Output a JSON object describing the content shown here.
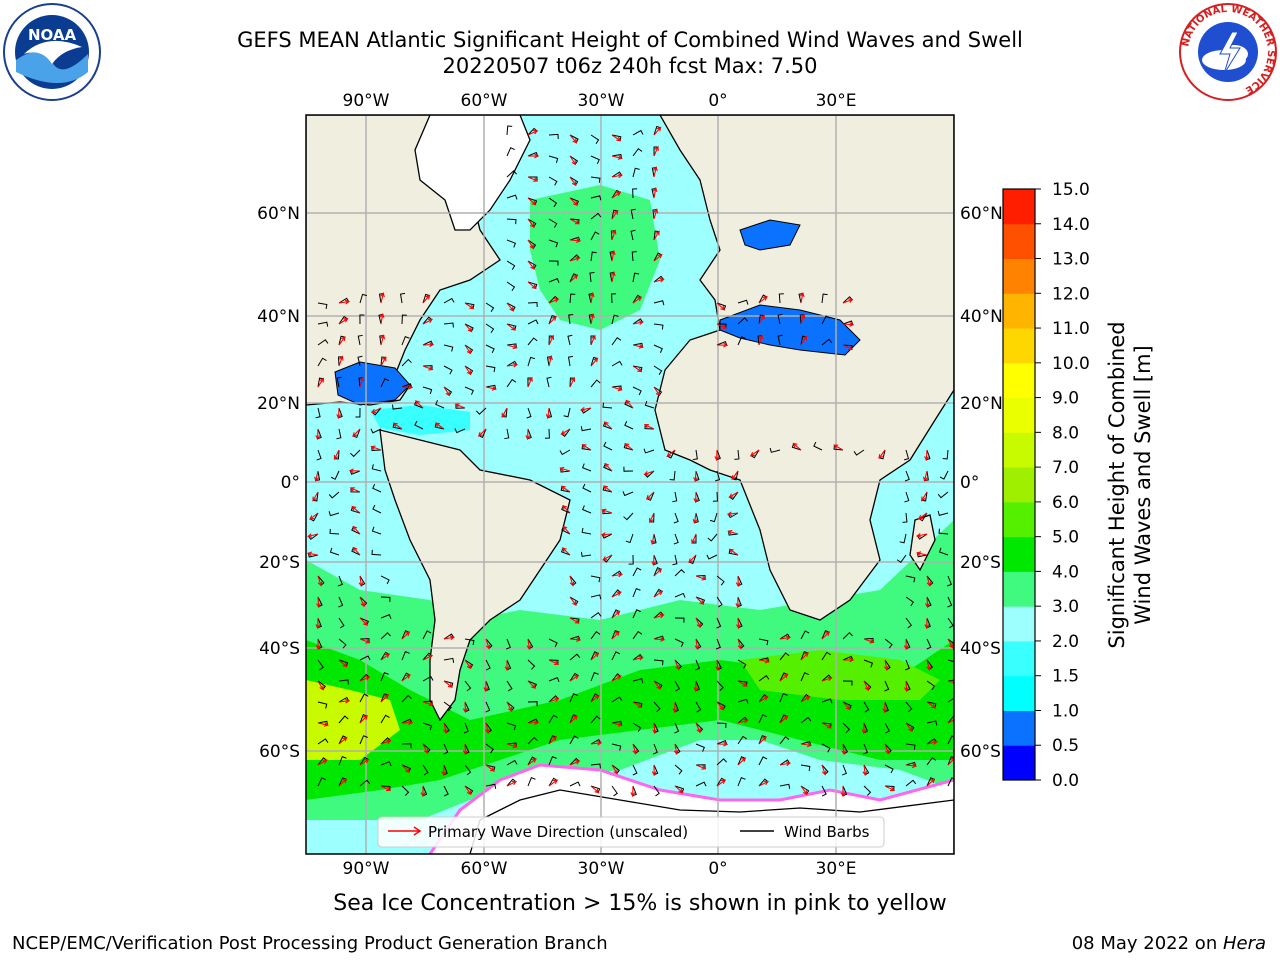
{
  "title": {
    "line1": "GEFS MEAN Atlantic Significant Height of Combined Wind Waves and Swell",
    "line2": "20220507 t06z 240h fcst   Max: 7.50"
  },
  "logos": {
    "left": "noaa-logo",
    "right": "national-weather-service-logo",
    "left_text": "NOAA",
    "right_ring_text": "NATIONAL WEATHER SERVICE"
  },
  "map": {
    "top_lon_labels": [
      "90°W",
      "60°W",
      "30°W",
      "0°",
      "30°E"
    ],
    "bottom_lon_labels": [
      "90°W",
      "60°W",
      "30°W",
      "0°",
      "30°E"
    ],
    "left_lat_labels": [
      "60°N",
      "40°N",
      "20°N",
      "0°",
      "20°S",
      "40°S",
      "60°S"
    ],
    "right_lat_labels": [
      "60°N",
      "40°N",
      "20°N",
      "0°",
      "20°S",
      "40°S",
      "60°S"
    ],
    "legend": {
      "wave_label": "Primary Wave Direction (unscaled)",
      "barb_label": "Wind Barbs",
      "wave_color": "#ff0000",
      "barb_color": "#000000"
    }
  },
  "colorbar": {
    "title_line1": "Significant Height of Combined",
    "title_line2": "Wind Waves and Swell [m]",
    "ticks": [
      "0.0",
      "0.5",
      "1.0",
      "1.5",
      "2.0",
      "3.0",
      "4.0",
      "5.0",
      "6.0",
      "7.0",
      "8.0",
      "9.0",
      "10.0",
      "11.0",
      "12.0",
      "13.0",
      "14.0",
      "15.0"
    ],
    "colors": [
      "#0000ff",
      "#0a72ff",
      "#00ffff",
      "#39ffff",
      "#9effff",
      "#40fa80",
      "#00e800",
      "#55f000",
      "#9ef000",
      "#c8fa00",
      "#eaff00",
      "#ffff00",
      "#ffd700",
      "#ffb400",
      "#ff8200",
      "#ff5000",
      "#ff1e00"
    ]
  },
  "note": "Sea Ice Concentration > 15% is shown in pink to yellow",
  "footer": {
    "left": "NCEP/EMC/Verification Post Processing Product Generation Branch",
    "right_date": "08 May 2022 on ",
    "right_host": "Hera"
  }
}
